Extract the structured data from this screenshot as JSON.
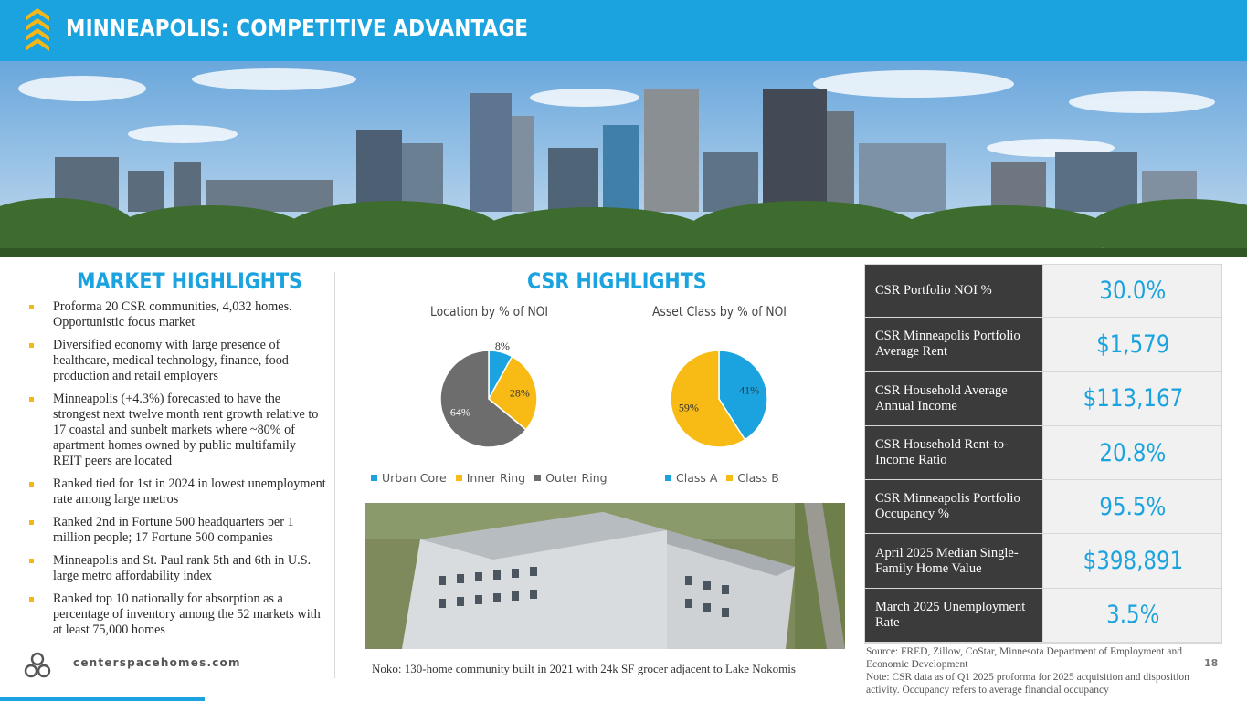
{
  "header": {
    "title": "MINNEAPOLIS: COMPETITIVE ADVANTAGE"
  },
  "market_highlights": {
    "title": "MARKET HIGHLIGHTS",
    "bullets": [
      "Proforma 20 CSR communities, 4,032 homes.  Opportunistic focus market",
      "Diversified economy with large presence of healthcare, medical technology, finance, food production and retail employers",
      "Minneapolis (+4.3%) forecasted to have the strongest next twelve month rent growth relative to 17 coastal and sunbelt markets where ~80% of apartment homes owned by public multifamily REIT peers are located",
      "Ranked tied for 1st in 2024 in lowest unemployment rate among large metros",
      "Ranked 2nd in Fortune 500 headquarters per 1 million people;  17 Fortune 500 companies",
      "Minneapolis and St. Paul rank 5th and 6th in U.S. large metro affordability index",
      "Ranked top 10 nationally for absorption as a percentage of inventory among the 52 markets with at least 75,000 homes"
    ]
  },
  "csr_highlights": {
    "title": "CSR HIGHLIGHTS",
    "photo_caption": "Noko: 130-home community built in 2021 with 24k SF grocer adjacent to Lake Nokomis"
  },
  "chart_data": [
    {
      "type": "pie",
      "title": "Location by % of NOI",
      "categories": [
        "Urban Core",
        "Inner Ring",
        "Outer Ring"
      ],
      "values": [
        8,
        28,
        64
      ],
      "labels": [
        "8%",
        "28%",
        "64%"
      ],
      "colors": [
        "#1aa3de",
        "#f8bb16",
        "#6d6d6d"
      ],
      "legend_position": "bottom"
    },
    {
      "type": "pie",
      "title": "Asset Class by % of NOI",
      "categories": [
        "Class A",
        "Class B"
      ],
      "values": [
        41,
        59
      ],
      "labels": [
        "41%",
        "59%"
      ],
      "colors": [
        "#1aa3de",
        "#f8bb16"
      ],
      "legend_position": "bottom"
    }
  ],
  "stats": [
    {
      "label": "CSR Portfolio NOI %",
      "value": "30.0%"
    },
    {
      "label": "CSR Minneapolis Portfolio Average Rent",
      "value": "$1,579"
    },
    {
      "label": "CSR Household Average Annual Income",
      "value": "$113,167"
    },
    {
      "label": "CSR Household Rent-to-Income Ratio",
      "value": "20.8%"
    },
    {
      "label": "CSR Minneapolis Portfolio Occupancy %",
      "value": "95.5%"
    },
    {
      "label": "April 2025 Median Single-Family Home Value",
      "value": "$398,891"
    },
    {
      "label": "March 2025 Unemployment Rate",
      "value": "3.5%"
    }
  ],
  "footer": {
    "url": "centerspacehomes.com",
    "source_note": "Source: FRED, Zillow, CoStar, Minnesota Department of Employment and Economic Development",
    "data_note": "Note: CSR data as of Q1 2025 proforma for 2025 acquisition and disposition activity. Occupancy refers to average financial occupancy",
    "page_number": "18"
  }
}
